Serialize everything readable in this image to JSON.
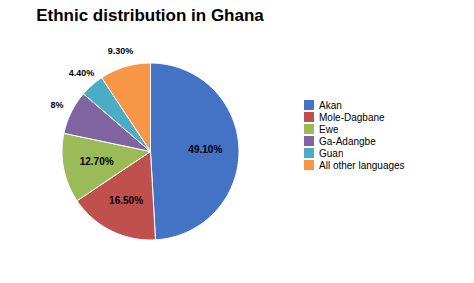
{
  "chart_data": {
    "type": "pie",
    "title": "Ethnic distribution in Ghana",
    "categories": [
      "Akan",
      "Mole-Dagbane",
      "Ewe",
      "Ga-Adangbe",
      "Guan",
      "All other languages"
    ],
    "values": [
      49.1,
      16.5,
      12.7,
      8,
      4.4,
      9.3
    ],
    "value_labels": [
      "49.10%",
      "16.50%",
      "12.70%",
      "8%",
      "4.40%",
      "9.30%"
    ],
    "colors": [
      "#4472C4",
      "#C0504D",
      "#9BBB59",
      "#8064A2",
      "#4BACC6",
      "#F79646"
    ],
    "data_labels": true,
    "legend": "right"
  }
}
